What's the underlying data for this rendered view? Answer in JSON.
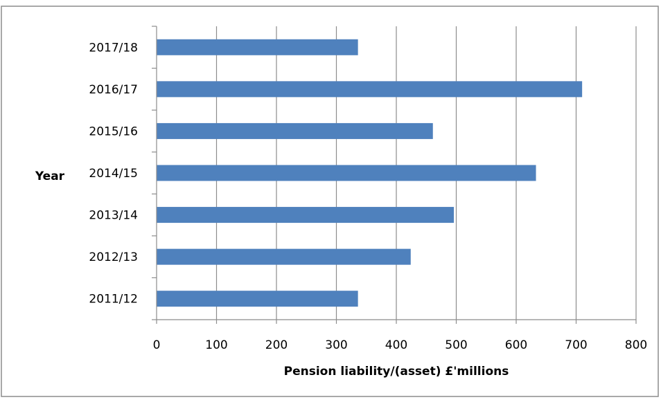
{
  "chart_data": {
    "type": "bar",
    "orientation": "horizontal",
    "title": "",
    "xlabel": "Pension liability/(asset) £'millions",
    "ylabel": "Year",
    "categories": [
      "2011/12",
      "2012/13",
      "2013/14",
      "2014/15",
      "2015/16",
      "2016/17",
      "2017/18"
    ],
    "values": [
      336,
      424,
      496,
      633,
      461,
      710,
      336
    ],
    "xlim": [
      0,
      800
    ],
    "xticks": [
      "0",
      "100",
      "200",
      "300",
      "400",
      "500",
      "600",
      "700",
      "800"
    ],
    "grid": "vertical",
    "legend": "none",
    "bar_color": "#4f81bd",
    "grid_color": "#8c8c8c",
    "border_color": "#8c8c8c"
  }
}
